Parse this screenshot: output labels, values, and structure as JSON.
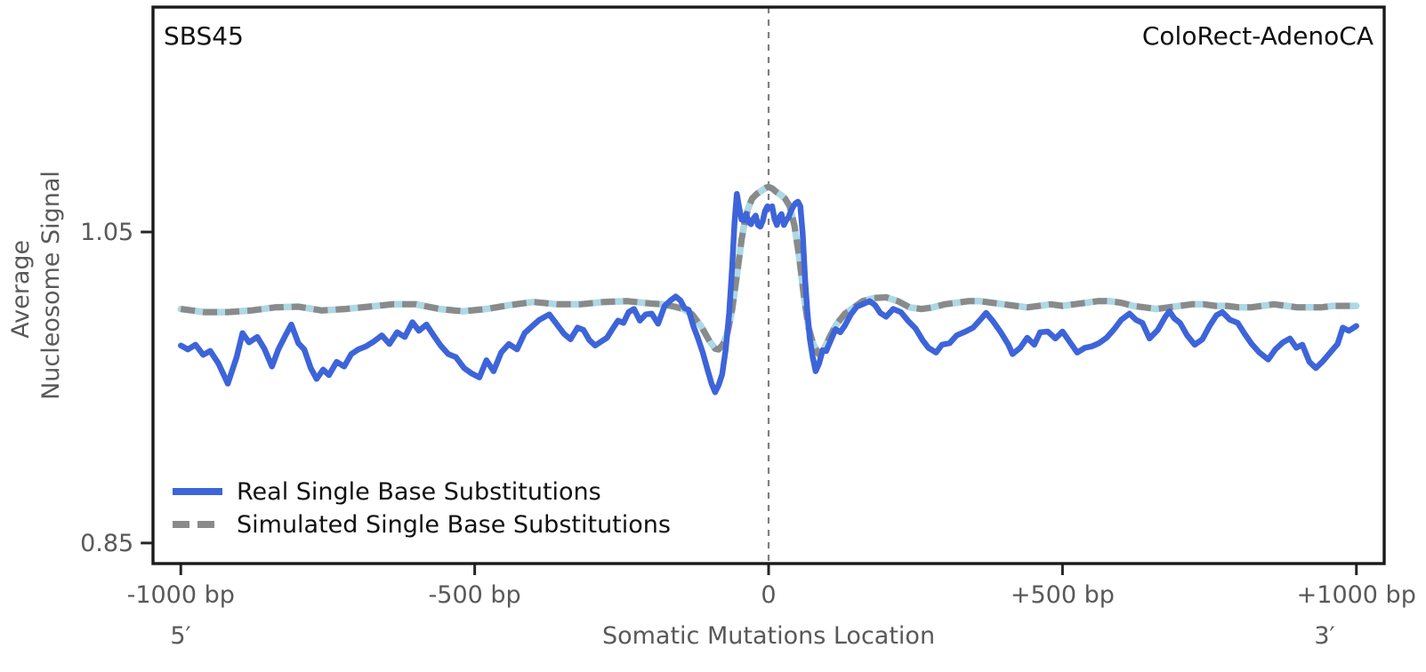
{
  "figure": {
    "signature_label": "SBS45",
    "cancer_type_label": "ColoRect-AdenoCA",
    "ylabel_line1": "Average",
    "ylabel_line2": "Nucleosome Signal",
    "xlabel": "Somatic Mutations Location",
    "five_prime_label": "5′",
    "three_prime_label": "3′"
  },
  "axes": {
    "x_ticks": [
      {
        "bp": -1000,
        "label": "-1000 bp"
      },
      {
        "bp": -500,
        "label": "-500 bp"
      },
      {
        "bp": 0,
        "label": "0"
      },
      {
        "bp": 500,
        "label": "+500 bp"
      },
      {
        "bp": 1000,
        "label": "+1000 bp"
      }
    ],
    "y_ticks": [
      {
        "value": 1.05,
        "label": "1.05"
      },
      {
        "value": 0.85,
        "label": "0.85"
      }
    ]
  },
  "legend": {
    "items": [
      {
        "label": "Real Single Base Substitutions",
        "style": "solid",
        "color": "#3d64d9"
      },
      {
        "label": "Simulated Single Base Substitutions",
        "style": "dashed",
        "color": "#8a8a8a"
      }
    ]
  },
  "colors": {
    "real_line": "#3d64d9",
    "simulated_line": "#8a8a8a",
    "simulated_underlay": "#ADD8E6",
    "center_line": "#7f7f7f",
    "spine": "#1a1a1a",
    "tick_mark": "#262626",
    "label_text": "#595959",
    "title_text": "#111111"
  },
  "chart_data": {
    "type": "line",
    "title": "SBS45 — ColoRect-AdenoCA",
    "xlabel": "Somatic Mutations Location",
    "ylabel": "Average Nucleosome Signal",
    "x_unit": "bp",
    "xlim": [
      -1047,
      1047
    ],
    "ylim": [
      0.8368,
      1.1946
    ],
    "grid": false,
    "legend_position": "lower left",
    "center_line_x": 0,
    "series": [
      {
        "name": "Real Single Base Substitutions",
        "style": "solid",
        "color": "#3d64d9",
        "x": [
          -1000,
          -988,
          -975,
          -962,
          -950,
          -936,
          -920,
          -905,
          -895,
          -884,
          -870,
          -858,
          -845,
          -834,
          -822,
          -812,
          -800,
          -790,
          -779,
          -769,
          -758,
          -748,
          -735,
          -722,
          -710,
          -698,
          -685,
          -672,
          -658,
          -645,
          -632,
          -619,
          -606,
          -595,
          -582,
          -570,
          -558,
          -545,
          -532,
          -518,
          -505,
          -492,
          -480,
          -468,
          -455,
          -442,
          -428,
          -415,
          -402,
          -390,
          -373,
          -360,
          -348,
          -337,
          -325,
          -315,
          -305,
          -295,
          -285,
          -275,
          -265,
          -256,
          -247,
          -238,
          -229,
          -219,
          -209,
          -199,
          -188,
          -177,
          -167,
          -158,
          -150,
          -143,
          -136,
          -128,
          -120,
          -112,
          -104,
          -97,
          -91,
          -85,
          -79,
          -73,
          -67,
          -62,
          -58,
          -54,
          -50,
          -46,
          -42,
          -38,
          -34,
          -30,
          -26,
          -22,
          -18,
          -14,
          -10,
          -6,
          -2,
          2,
          6,
          10,
          14,
          18,
          22,
          26,
          30,
          34,
          38,
          42,
          46,
          50,
          54,
          58,
          62,
          66,
          70,
          75,
          80,
          86,
          92,
          98,
          106,
          114,
          122,
          130,
          140,
          150,
          160,
          172,
          181,
          190,
          200,
          212,
          225,
          238,
          250,
          262,
          272,
          285,
          295,
          308,
          320,
          335,
          348,
          360,
          370,
          382,
          395,
          408,
          415,
          428,
          440,
          452,
          462,
          475,
          488,
          500,
          512,
          525,
          538,
          550,
          562,
          575,
          588,
          600,
          614,
          625,
          636,
          648,
          662,
          675,
          682,
          690,
          700,
          712,
          725,
          738,
          750,
          762,
          772,
          785,
          798,
          810,
          822,
          835,
          850,
          862,
          875,
          887,
          898,
          908,
          920,
          931,
          942,
          951,
          960,
          968,
          977,
          987,
          1000
        ],
        "y": [
          0.977,
          0.9745,
          0.9775,
          0.971,
          0.9735,
          0.9655,
          0.9525,
          0.9695,
          0.985,
          0.979,
          0.9825,
          0.975,
          0.9635,
          0.9745,
          0.9835,
          0.9905,
          0.9785,
          0.9745,
          0.9625,
          0.9555,
          0.9615,
          0.958,
          0.9665,
          0.9635,
          0.9715,
          0.9745,
          0.9765,
          0.9795,
          0.9835,
          0.978,
          0.9855,
          0.9825,
          0.992,
          0.9865,
          0.9905,
          0.9835,
          0.977,
          0.9715,
          0.9695,
          0.9625,
          0.959,
          0.9565,
          0.9675,
          0.9605,
          0.9725,
          0.978,
          0.9745,
          0.985,
          0.9895,
          0.9935,
          0.997,
          0.9905,
          0.9845,
          0.981,
          0.9885,
          0.987,
          0.9805,
          0.977,
          0.9795,
          0.982,
          0.988,
          0.993,
          0.9915,
          0.9985,
          1.0005,
          0.993,
          0.997,
          0.9975,
          0.991,
          1.0023,
          1.006,
          1.0085,
          1.006,
          1.001,
          1.0,
          0.9895,
          0.9815,
          0.9725,
          0.9615,
          0.9525,
          0.947,
          0.9515,
          0.9585,
          0.9745,
          0.998,
          1.027,
          1.056,
          1.0745,
          1.0655,
          1.058,
          1.0575,
          1.0615,
          1.0565,
          1.055,
          1.0585,
          1.0605,
          1.0545,
          1.0535,
          1.057,
          1.0635,
          1.0665,
          1.0655,
          1.0665,
          1.0585,
          1.0545,
          1.0595,
          1.0615,
          1.0545,
          1.0575,
          1.0595,
          1.0635,
          1.0665,
          1.0685,
          1.0695,
          1.0665,
          1.049,
          1.02,
          0.9985,
          0.9815,
          0.9695,
          0.9605,
          0.9655,
          0.974,
          0.9735,
          0.9805,
          0.9875,
          0.9855,
          0.99,
          0.997,
          1.002,
          1.0035,
          1.0055,
          1.003,
          0.998,
          0.9955,
          1.0005,
          0.9985,
          0.9925,
          0.988,
          0.9805,
          0.9755,
          0.9725,
          0.9775,
          0.9785,
          0.9835,
          0.986,
          0.9885,
          0.9935,
          0.998,
          0.9925,
          0.9855,
          0.9775,
          0.9715,
          0.9755,
          0.982,
          0.9775,
          0.9855,
          0.986,
          0.9815,
          0.986,
          0.9795,
          0.9725,
          0.9755,
          0.9765,
          0.9785,
          0.982,
          0.9875,
          0.9935,
          0.9975,
          0.9935,
          0.9915,
          0.9815,
          0.987,
          0.9955,
          0.999,
          0.9945,
          0.9915,
          0.9835,
          0.9775,
          0.981,
          0.9895,
          0.9965,
          0.9985,
          0.9935,
          0.9915,
          0.9845,
          0.978,
          0.9725,
          0.968,
          0.9745,
          0.979,
          0.9815,
          0.9755,
          0.9775,
          0.9665,
          0.9625,
          0.9665,
          0.9705,
          0.9745,
          0.978,
          0.9885,
          0.9865,
          0.9895
        ]
      },
      {
        "name": "Simulated Single Base Substitutions",
        "style": "dashed",
        "color": "#8a8a8a",
        "underlay_color": "#ADD8E6",
        "x": [
          -1000,
          -960,
          -920,
          -880,
          -840,
          -800,
          -760,
          -720,
          -680,
          -640,
          -600,
          -560,
          -520,
          -480,
          -440,
          -400,
          -360,
          -320,
          -280,
          -240,
          -200,
          -180,
          -160,
          -145,
          -130,
          -115,
          -100,
          -91,
          -85,
          -78,
          -70,
          -62,
          -54,
          -46,
          -40,
          -34,
          -28,
          -20,
          -12,
          -4,
          0,
          6,
          14,
          22,
          28,
          36,
          44,
          52,
          60,
          68,
          76,
          85,
          94,
          104,
          115,
          130,
          145,
          160,
          180,
          200,
          220,
          240,
          260,
          280,
          300,
          320,
          340,
          360,
          380,
          400,
          420,
          440,
          460,
          480,
          500,
          520,
          540,
          560,
          580,
          600,
          620,
          640,
          660,
          680,
          700,
          720,
          740,
          760,
          780,
          800,
          820,
          840,
          860,
          880,
          900,
          920,
          940,
          960,
          980,
          1000
        ],
        "y": [
          1.0005,
          0.9985,
          0.9985,
          0.9995,
          1.0015,
          1.002,
          0.9995,
          1.0005,
          1.002,
          1.0035,
          1.0035,
          1.0005,
          0.999,
          1.0005,
          1.003,
          1.005,
          1.0035,
          1.0035,
          1.005,
          1.0055,
          1.004,
          1.0035,
          1.002,
          1.0005,
          0.997,
          0.9895,
          0.9795,
          0.975,
          0.9745,
          0.9775,
          0.985,
          1.0,
          1.022,
          1.045,
          1.058,
          1.066,
          1.0715,
          1.0745,
          1.0765,
          1.0785,
          1.079,
          1.078,
          1.0755,
          1.0735,
          1.0715,
          1.0665,
          1.054,
          1.034,
          1.009,
          0.9885,
          0.978,
          0.9715,
          0.9745,
          0.9825,
          0.9905,
          0.9975,
          1.0015,
          1.0055,
          1.0075,
          1.008,
          1.0055,
          1.0015,
          1.0005,
          1.0015,
          1.0035,
          1.0045,
          1.0055,
          1.0055,
          1.0045,
          1.0035,
          1.0025,
          1.0015,
          1.0025,
          1.0035,
          1.0025,
          1.0035,
          1.0045,
          1.0055,
          1.0055,
          1.0045,
          1.0025,
          1.0015,
          1.0005,
          1.0015,
          1.0025,
          1.0035,
          1.0035,
          1.0025,
          1.0025,
          1.0015,
          1.0015,
          1.0025,
          1.0035,
          1.0025,
          1.0015,
          1.0015,
          1.0015,
          1.0025,
          1.0025,
          1.0025
        ]
      }
    ]
  }
}
